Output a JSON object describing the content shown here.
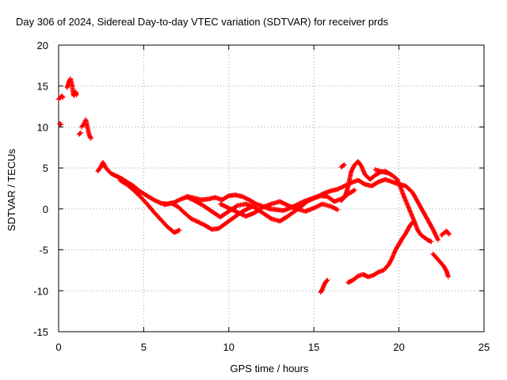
{
  "chart_data": {
    "type": "scatter",
    "title": "Day 306 of 2024, Sidereal Day-to-day VTEC variation (SDTVAR) for receiver prds",
    "xlabel": "GPS time / hours",
    "ylabel": "SDTVAR / TECUs",
    "xlim": [
      0,
      25
    ],
    "ylim": [
      -15,
      20
    ],
    "xticks": [
      0,
      5,
      10,
      15,
      20,
      25
    ],
    "yticks": [
      -15,
      -10,
      -5,
      0,
      5,
      10,
      15,
      20
    ],
    "grid": true,
    "marker": "+",
    "series": [
      {
        "name": "SDTVAR",
        "color": "#ff0000",
        "segments": [
          [
            [
              0.0,
              13.4
            ],
            [
              0.1,
              13.6
            ],
            [
              0.2,
              13.8
            ],
            [
              0.25,
              13.6
            ]
          ],
          [
            [
              0.05,
              10.4
            ],
            [
              0.15,
              10.3
            ]
          ],
          [
            [
              0.5,
              14.8
            ],
            [
              0.6,
              15.5
            ],
            [
              0.7,
              15.9
            ],
            [
              0.8,
              15.0
            ],
            [
              0.85,
              14.2
            ],
            [
              0.9,
              13.8
            ],
            [
              1.0,
              14.3
            ],
            [
              1.05,
              13.9
            ]
          ],
          [
            [
              1.2,
              9.1
            ],
            [
              1.3,
              9.3
            ]
          ],
          [
            [
              1.35,
              10.0
            ],
            [
              1.5,
              10.4
            ],
            [
              1.6,
              10.9
            ],
            [
              1.7,
              9.9
            ],
            [
              1.8,
              9.0
            ],
            [
              1.9,
              8.6
            ]
          ],
          [
            [
              2.3,
              4.6
            ],
            [
              2.5,
              5.2
            ],
            [
              2.6,
              5.7
            ],
            [
              2.75,
              5.1
            ],
            [
              2.9,
              4.7
            ],
            [
              3.1,
              4.3
            ],
            [
              3.4,
              4.0
            ],
            [
              3.7,
              3.7
            ],
            [
              4.0,
              3.3
            ],
            [
              4.4,
              2.8
            ],
            [
              4.8,
              2.1
            ],
            [
              5.2,
              1.6
            ],
            [
              5.6,
              1.1
            ],
            [
              6.0,
              0.7
            ],
            [
              6.4,
              0.6
            ],
            [
              6.8,
              0.8
            ],
            [
              7.2,
              1.2
            ],
            [
              7.6,
              1.5
            ],
            [
              8.0,
              1.3
            ],
            [
              8.4,
              1.1
            ],
            [
              8.8,
              1.2
            ],
            [
              9.2,
              1.4
            ],
            [
              9.6,
              1.1
            ],
            [
              10.0,
              1.6
            ],
            [
              10.4,
              1.7
            ],
            [
              10.8,
              1.5
            ],
            [
              11.2,
              1.1
            ],
            [
              11.6,
              0.6
            ],
            [
              12.0,
              0.3
            ],
            [
              12.4,
              0.0
            ],
            [
              12.8,
              -0.1
            ],
            [
              13.2,
              -0.2
            ],
            [
              13.6,
              0.1
            ],
            [
              14.0,
              0.5
            ],
            [
              14.4,
              0.9
            ],
            [
              14.8,
              1.2
            ],
            [
              15.2,
              1.5
            ],
            [
              15.6,
              1.9
            ],
            [
              16.0,
              2.2
            ],
            [
              16.4,
              2.4
            ],
            [
              16.8,
              2.8
            ],
            [
              17.2,
              3.2
            ],
            [
              17.6,
              3.5
            ],
            [
              18.0,
              3.0
            ],
            [
              18.4,
              2.8
            ],
            [
              18.8,
              3.3
            ],
            [
              19.2,
              3.6
            ],
            [
              19.6,
              3.3
            ],
            [
              20.0,
              3.0
            ],
            [
              20.4,
              2.8
            ],
            [
              20.8,
              2.0
            ],
            [
              21.2,
              0.5
            ],
            [
              21.6,
              -1.0
            ],
            [
              22.0,
              -2.5
            ],
            [
              22.3,
              -3.8
            ]
          ],
          [
            [
              3.6,
              3.5
            ],
            [
              4.0,
              3.0
            ],
            [
              4.4,
              2.3
            ],
            [
              4.8,
              1.5
            ],
            [
              5.2,
              0.6
            ],
            [
              5.6,
              -0.4
            ],
            [
              6.0,
              -1.3
            ],
            [
              6.4,
              -2.2
            ],
            [
              6.8,
              -2.9
            ],
            [
              7.1,
              -2.6
            ]
          ],
          [
            [
              6.2,
              0.5
            ],
            [
              6.6,
              0.7
            ],
            [
              7.0,
              0.3
            ],
            [
              7.4,
              -0.5
            ],
            [
              7.8,
              -1.2
            ],
            [
              8.2,
              -1.6
            ],
            [
              8.6,
              -2.0
            ],
            [
              9.0,
              -2.5
            ],
            [
              9.4,
              -2.4
            ],
            [
              9.8,
              -1.8
            ],
            [
              10.2,
              -1.2
            ],
            [
              10.6,
              -0.6
            ],
            [
              11.0,
              -0.1
            ],
            [
              11.4,
              0.3
            ]
          ],
          [
            [
              7.5,
              1.5
            ],
            [
              8.0,
              1.0
            ],
            [
              8.5,
              0.4
            ],
            [
              9.0,
              -0.3
            ],
            [
              9.5,
              -1.0
            ],
            [
              10.0,
              -0.3
            ],
            [
              10.5,
              0.4
            ],
            [
              11.0,
              0.6
            ],
            [
              11.5,
              0.2
            ],
            [
              12.0,
              -0.5
            ],
            [
              12.5,
              -1.2
            ],
            [
              13.0,
              -1.5
            ],
            [
              13.4,
              -1.0
            ],
            [
              13.8,
              -0.4
            ],
            [
              14.2,
              0.2
            ],
            [
              14.6,
              0.9
            ],
            [
              15.0,
              1.3
            ],
            [
              15.4,
              1.6
            ],
            [
              15.8,
              1.5
            ],
            [
              16.2,
              0.9
            ],
            [
              16.6,
              1.2
            ],
            [
              17.0,
              1.8
            ],
            [
              17.4,
              2.3
            ]
          ],
          [
            [
              9.5,
              0.6
            ],
            [
              10.0,
              0.1
            ],
            [
              10.5,
              -0.4
            ],
            [
              11.0,
              -0.9
            ],
            [
              11.5,
              -0.5
            ],
            [
              12.0,
              0.2
            ],
            [
              12.5,
              0.6
            ],
            [
              13.0,
              0.9
            ],
            [
              13.5,
              0.4
            ],
            [
              14.0,
              0.0
            ],
            [
              14.5,
              -0.3
            ],
            [
              15.0,
              0.1
            ],
            [
              15.5,
              0.6
            ],
            [
              16.0,
              0.3
            ],
            [
              16.4,
              -0.1
            ]
          ],
          [
            [
              15.4,
              -10.2
            ],
            [
              15.5,
              -9.8
            ],
            [
              15.6,
              -9.3
            ],
            [
              15.7,
              -8.9
            ],
            [
              15.8,
              -8.7
            ]
          ],
          [
            [
              17.0,
              -9.0
            ],
            [
              17.3,
              -8.7
            ],
            [
              17.6,
              -8.2
            ],
            [
              17.9,
              -8.0
            ],
            [
              18.2,
              -8.3
            ],
            [
              18.5,
              -8.1
            ],
            [
              18.8,
              -7.7
            ],
            [
              19.1,
              -7.5
            ],
            [
              19.4,
              -6.8
            ],
            [
              19.6,
              -6.0
            ],
            [
              19.8,
              -5.0
            ],
            [
              20.0,
              -4.3
            ],
            [
              20.2,
              -3.6
            ],
            [
              20.4,
              -3.0
            ],
            [
              20.6,
              -2.2
            ],
            [
              20.8,
              -1.6
            ]
          ],
          [
            [
              16.6,
              1.0
            ],
            [
              16.8,
              1.4
            ],
            [
              17.0,
              2.6
            ],
            [
              17.2,
              4.6
            ],
            [
              17.4,
              5.4
            ],
            [
              17.6,
              5.8
            ],
            [
              17.8,
              5.2
            ],
            [
              18.0,
              4.2
            ],
            [
              18.3,
              3.6
            ],
            [
              18.6,
              4.1
            ],
            [
              18.9,
              4.5
            ],
            [
              19.2,
              4.6
            ],
            [
              19.6,
              4.1
            ],
            [
              19.9,
              3.6
            ],
            [
              20.1,
              2.6
            ],
            [
              20.3,
              1.5
            ],
            [
              20.5,
              0.5
            ],
            [
              20.7,
              -0.5
            ],
            [
              20.9,
              -1.5
            ],
            [
              21.1,
              -2.6
            ],
            [
              21.3,
              -3.2
            ],
            [
              21.5,
              -3.5
            ],
            [
              21.7,
              -3.8
            ],
            [
              21.9,
              -4.0
            ]
          ],
          [
            [
              16.6,
              5.1
            ],
            [
              16.8,
              5.4
            ]
          ],
          [
            [
              18.6,
              4.8
            ],
            [
              18.9,
              4.6
            ],
            [
              19.3,
              4.4
            ]
          ],
          [
            [
              22.5,
              -3.2
            ],
            [
              22.8,
              -2.7
            ],
            [
              22.95,
              -3.1
            ]
          ],
          [
            [
              22.0,
              -5.5
            ],
            [
              22.3,
              -6.2
            ],
            [
              22.6,
              -6.9
            ],
            [
              22.8,
              -7.6
            ],
            [
              22.9,
              -8.3
            ]
          ]
        ]
      }
    ]
  }
}
